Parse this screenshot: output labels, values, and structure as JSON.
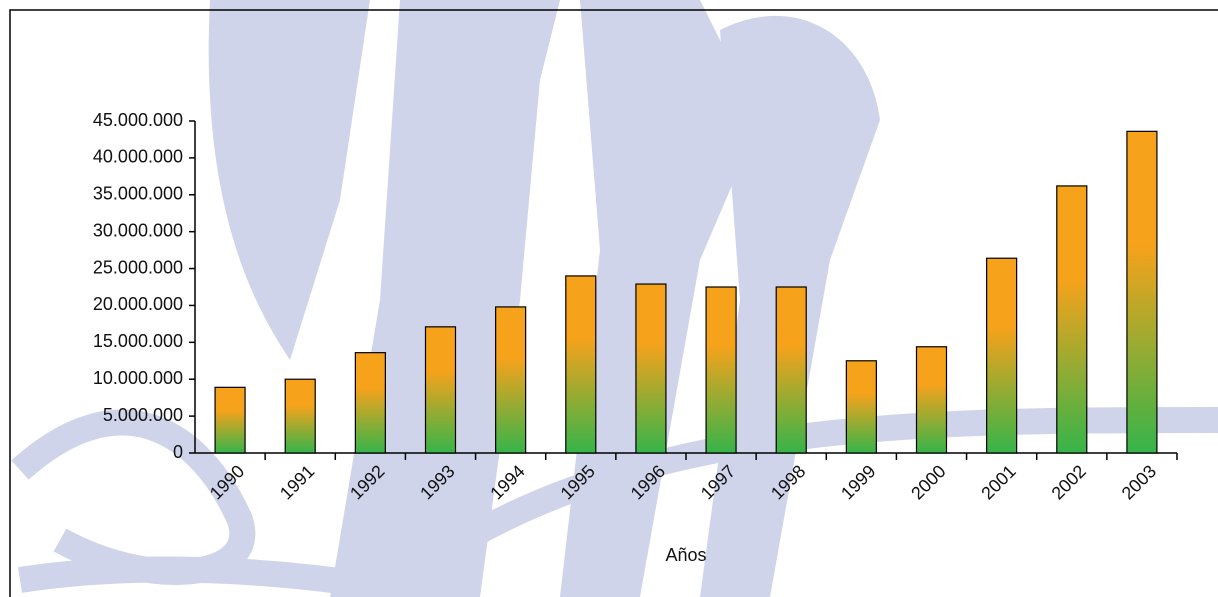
{
  "chart_data": {
    "type": "bar",
    "x_label": "Años",
    "categories": [
      "1990",
      "1991",
      "1992",
      "1993",
      "1994",
      "1995",
      "1996",
      "1997",
      "1998",
      "1999",
      "2000",
      "2001",
      "2002",
      "2003"
    ],
    "values": [
      8900000,
      10000000,
      13600000,
      17100000,
      19800000,
      24000000,
      22900000,
      22500000,
      22500000,
      12500000,
      14400000,
      26400000,
      36200000,
      43600000
    ],
    "colors": [
      "#f7a21b",
      "#36b44a"
    ],
    "ylim": [
      0,
      45000000
    ],
    "yticks": [
      0,
      {
        "value": 5000000,
        "label": "5.000.000"
      },
      {
        "value": 10000000,
        "label": "10.000.000"
      },
      {
        "value": 15000000,
        "label": "15.000.000"
      },
      {
        "value": 20000000,
        "label": "20.000.000"
      },
      {
        "value": 25000000,
        "label": "25.000.000"
      },
      {
        "value": 30000000,
        "label": "30.000.000"
      },
      {
        "value": 35000000,
        "label": "35.000.000"
      },
      {
        "value": 40000000,
        "label": "40.000.000"
      },
      {
        "value": 45000000,
        "label": "45.000.000"
      }
    ],
    "grid": false
  }
}
